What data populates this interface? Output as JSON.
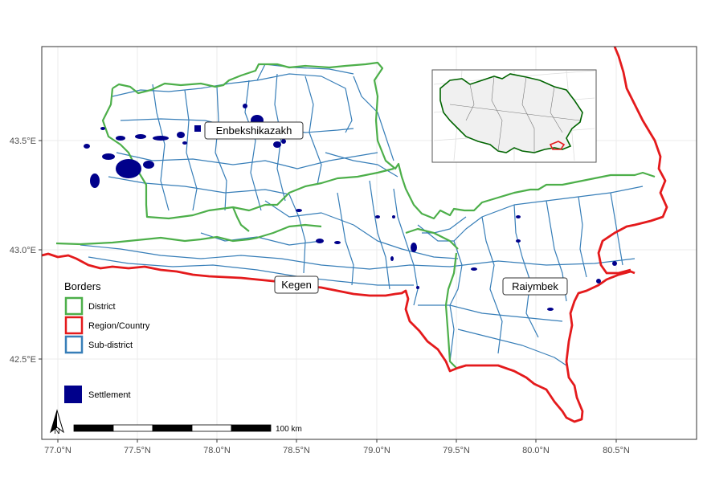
{
  "axes": {
    "x_ticks": [
      "77.0°N",
      "77.5°N",
      "78.0°N",
      "78.5°N",
      "79.0°N",
      "79.5°N",
      "80.0°N",
      "80.5°N"
    ],
    "y_ticks": [
      "43.5°E",
      "43.0°E",
      "42.5°E"
    ]
  },
  "districts": [
    {
      "id": "enbekshikazakh",
      "label": "Enbekshikazakh"
    },
    {
      "id": "kegen",
      "label": "Kegen"
    },
    {
      "id": "raiymbek",
      "label": "Raiymbek"
    }
  ],
  "legend": {
    "title": "Borders",
    "items": [
      {
        "label": "District",
        "color": "#4daf4a"
      },
      {
        "label": "Region/Country",
        "color": "#e41a1c"
      },
      {
        "label": "Sub-district",
        "color": "#377eb8"
      }
    ],
    "settlement": {
      "label": "Settlement",
      "color": "#00008b"
    }
  },
  "scale_bar": {
    "label": "100 km"
  },
  "north_arrow": {
    "label": "N"
  },
  "colors": {
    "district": "#4daf4a",
    "region": "#e41a1c",
    "subdistrict": "#377eb8",
    "settlement": "#00008b",
    "grid": "#ebebeb",
    "panel_border": "#333333",
    "inset_fill": "#f0f0f0",
    "inset_border": "#006400"
  }
}
